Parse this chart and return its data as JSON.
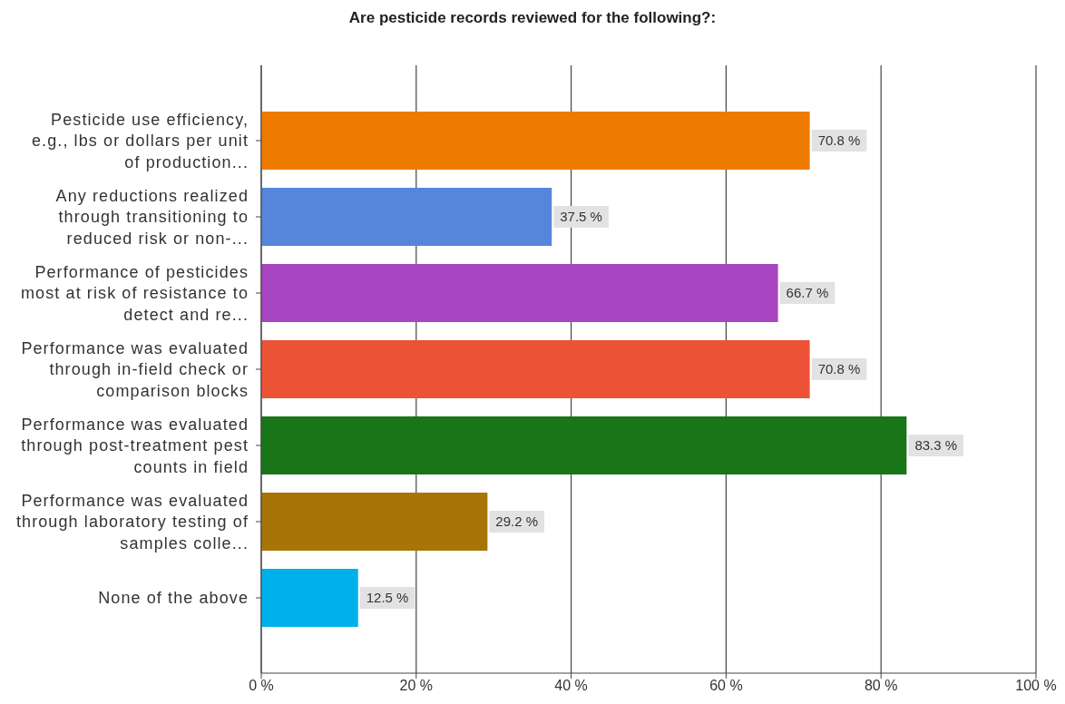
{
  "chart_data": {
    "type": "bar",
    "orientation": "horizontal",
    "title": "Are pesticide records reviewed for the following?:",
    "categories": [
      "Pesticide use efficiency, e.g., lbs or dollars per unit of production...",
      "Any reductions realized through transitioning to reduced risk or non-...",
      "Performance of pesticides most at risk of resistance to detect and re...",
      "Performance was evaluated through in-field check or comparison blocks",
      "Performance was evaluated through post-treatment pest counts in field",
      "Performance was evaluated through laboratory testing of samples colle...",
      "None of the above"
    ],
    "values": [
      70.8,
      37.5,
      66.7,
      70.8,
      83.3,
      29.2,
      12.5
    ],
    "colors": [
      "#ee7b00",
      "#5586dc",
      "#a845c0",
      "#ec5236",
      "#187518",
      "#a87408",
      "#00b0ea"
    ],
    "value_labels": [
      "70.8 %",
      "37.5 %",
      "66.7 %",
      "70.8 %",
      "83.3 %",
      "29.2 %",
      "12.5 %"
    ],
    "xlim": [
      0,
      100
    ],
    "xticks": [
      {
        "value": 0,
        "label": "0 %"
      },
      {
        "value": 20,
        "label": "20 %"
      },
      {
        "value": 40,
        "label": "40 %"
      },
      {
        "value": 60,
        "label": "60 %"
      },
      {
        "value": 80,
        "label": "80 %"
      },
      {
        "value": 100,
        "label": "100 %"
      }
    ],
    "grid": "x"
  }
}
